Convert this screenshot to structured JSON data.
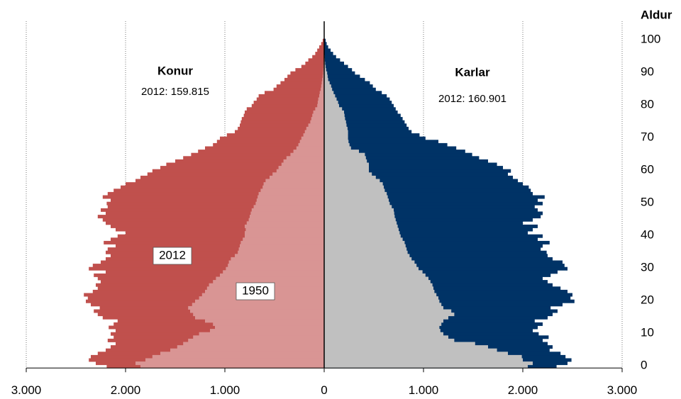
{
  "chart_data": {
    "type": "pyramid",
    "y_label": "Aldur",
    "categories": [
      0,
      1,
      2,
      3,
      4,
      5,
      6,
      7,
      8,
      9,
      10,
      11,
      12,
      13,
      14,
      15,
      16,
      17,
      18,
      19,
      20,
      21,
      22,
      23,
      24,
      25,
      26,
      27,
      28,
      29,
      30,
      31,
      32,
      33,
      34,
      35,
      36,
      37,
      38,
      39,
      40,
      41,
      42,
      43,
      44,
      45,
      46,
      47,
      48,
      49,
      50,
      51,
      52,
      53,
      54,
      55,
      56,
      57,
      58,
      59,
      60,
      61,
      62,
      63,
      64,
      65,
      66,
      67,
      68,
      69,
      70,
      71,
      72,
      73,
      74,
      75,
      76,
      77,
      78,
      79,
      80,
      81,
      82,
      83,
      84,
      85,
      86,
      87,
      88,
      89,
      90,
      91,
      92,
      93,
      94,
      95,
      96,
      97,
      98,
      99,
      100
    ],
    "ylim": [
      -0.5,
      100.5
    ],
    "yticks": [
      0,
      10,
      20,
      30,
      40,
      50,
      60,
      70,
      80,
      90,
      100
    ],
    "xlim": [
      0,
      3000
    ],
    "xticks_left": [
      {
        "value": 3000,
        "label": "3.000"
      },
      {
        "value": 2000,
        "label": "2.000"
      },
      {
        "value": 1000,
        "label": "1.000"
      }
    ],
    "xticks_right": [
      0,
      {
        "value": 1000,
        "label": "1.000"
      },
      {
        "value": 2000,
        "label": "2.000"
      },
      {
        "value": 3000,
        "label": "3.000"
      }
    ],
    "grid": true,
    "annotations": [
      {
        "text": "Konur",
        "bold": true
      },
      {
        "text": "2012: 159.815"
      },
      {
        "text": "Karlar",
        "bold": true
      },
      {
        "text": "2012: 160.901"
      },
      {
        "text": "2012",
        "boxed": true
      },
      {
        "text": "1950",
        "boxed": true
      }
    ],
    "series": [
      {
        "side": "left",
        "color": "#c0504d",
        "values": [
          2190,
          2300,
          2370,
          2350,
          2280,
          2200,
          2150,
          2100,
          2180,
          2120,
          2150,
          2100,
          2170,
          2120,
          2080,
          2230,
          2280,
          2320,
          2260,
          2350,
          2400,
          2380,
          2420,
          2330,
          2280,
          2300,
          2250,
          2280,
          2320,
          2200,
          2370,
          2330,
          2250,
          2200,
          2150,
          2200,
          2180,
          2100,
          2220,
          2150,
          2080,
          2000,
          2100,
          2150,
          2200,
          2230,
          2280,
          2200,
          2250,
          2180,
          2190,
          2150,
          2230,
          2180,
          2120,
          2050,
          2000,
          1900,
          1850,
          1780,
          1730,
          1650,
          1590,
          1500,
          1420,
          1340,
          1270,
          1200,
          1120,
          1080,
          1050,
          980,
          900,
          870,
          850,
          840,
          830,
          810,
          800,
          780,
          730,
          710,
          680,
          660,
          600,
          510,
          480,
          440,
          400,
          370,
          340,
          290,
          230,
          190,
          160,
          120,
          90,
          70,
          50,
          30,
          15
        ]
      },
      {
        "side": "left",
        "color": "#d99594",
        "values": [
          1850,
          1900,
          1800,
          1730,
          1650,
          1550,
          1480,
          1420,
          1370,
          1320,
          1260,
          1150,
          1100,
          1120,
          1200,
          1300,
          1320,
          1350,
          1370,
          1330,
          1300,
          1260,
          1230,
          1200,
          1180,
          1160,
          1120,
          1090,
          1050,
          1020,
          990,
          970,
          960,
          940,
          900,
          870,
          860,
          850,
          840,
          820,
          800,
          800,
          790,
          800,
          780,
          760,
          750,
          740,
          730,
          710,
          690,
          680,
          670,
          660,
          640,
          620,
          610,
          590,
          550,
          520,
          480,
          460,
          430,
          410,
          380,
          340,
          310,
          280,
          260,
          245,
          230,
          210,
          195,
          180,
          160,
          140,
          130,
          120,
          110,
          90,
          70,
          65,
          60,
          50,
          45,
          35,
          30,
          25,
          20,
          15,
          12,
          10,
          8,
          6,
          4,
          3,
          2,
          1,
          1,
          0,
          0
        ]
      },
      {
        "side": "right",
        "color": "#003366",
        "values": [
          2340,
          2450,
          2490,
          2430,
          2380,
          2270,
          2300,
          2250,
          2200,
          2260,
          2160,
          2100,
          2150,
          2200,
          2120,
          2250,
          2300,
          2350,
          2280,
          2400,
          2520,
          2480,
          2500,
          2450,
          2380,
          2300,
          2250,
          2200,
          2280,
          2350,
          2450,
          2420,
          2400,
          2300,
          2250,
          2240,
          2180,
          2200,
          2270,
          2150,
          2200,
          2050,
          2100,
          2150,
          2000,
          2100,
          2180,
          2200,
          2150,
          2120,
          2200,
          2150,
          2220,
          2100,
          2080,
          2060,
          2000,
          1950,
          1900,
          1850,
          1880,
          1800,
          1740,
          1650,
          1560,
          1490,
          1420,
          1330,
          1240,
          1150,
          1020,
          960,
          880,
          850,
          830,
          810,
          790,
          770,
          740,
          720,
          700,
          680,
          660,
          630,
          580,
          520,
          490,
          460,
          410,
          360,
          310,
          280,
          240,
          200,
          160,
          120,
          90,
          65,
          40,
          25,
          15
        ]
      },
      {
        "side": "right",
        "color": "#c0c0c0",
        "values": [
          2050,
          2100,
          2000,
          1990,
          1850,
          1740,
          1650,
          1520,
          1310,
          1250,
          1200,
          1170,
          1160,
          1180,
          1200,
          1250,
          1310,
          1280,
          1200,
          1180,
          1160,
          1150,
          1130,
          1110,
          1100,
          1090,
          1070,
          1050,
          1020,
          990,
          950,
          930,
          910,
          880,
          860,
          840,
          830,
          820,
          810,
          790,
          770,
          760,
          750,
          740,
          730,
          720,
          710,
          705,
          700,
          680,
          660,
          650,
          640,
          630,
          610,
          600,
          590,
          560,
          520,
          480,
          450,
          450,
          450,
          430,
          420,
          410,
          350,
          270,
          255,
          245,
          240,
          240,
          240,
          235,
          225,
          220,
          210,
          205,
          200,
          180,
          150,
          140,
          125,
          110,
          95,
          80,
          70,
          55,
          40,
          35,
          30,
          20,
          15,
          10,
          7,
          5,
          3,
          2,
          1,
          0,
          0
        ]
      }
    ]
  }
}
